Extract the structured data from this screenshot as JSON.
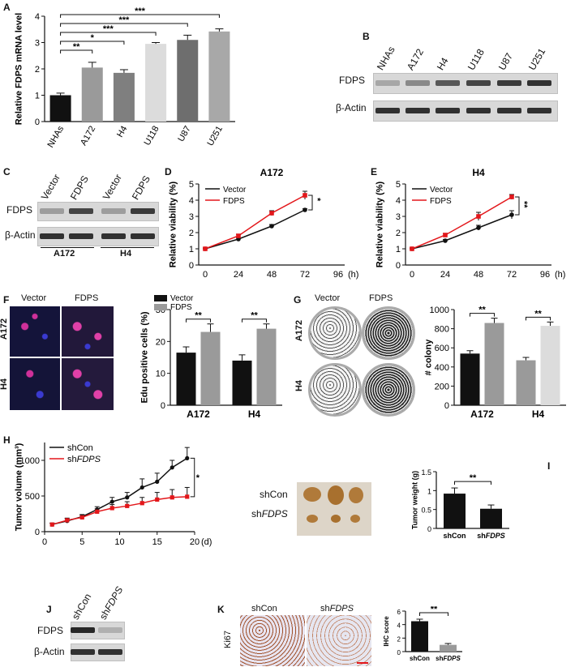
{
  "panels": {
    "A": "A",
    "B": "B",
    "C": "C",
    "D": "D",
    "E": "E",
    "F": "F",
    "G": "G",
    "H": "H",
    "I": "I",
    "J": "J",
    "K": "K"
  },
  "colors": {
    "black": "#111111",
    "red": "#e3171b",
    "grey": "#9a9a9a",
    "lightgrey": "#dcdcdc"
  },
  "blotB": {
    "lanes": [
      "NHAs",
      "A172",
      "H4",
      "U118",
      "U87",
      "U251"
    ],
    "rows": [
      "FDPS",
      "β-Actin"
    ]
  },
  "blotC": {
    "lanes": [
      "Vector",
      "FDPS",
      "Vector",
      "FDPS"
    ],
    "rows": [
      "FDPS",
      "β-Actin"
    ],
    "groups": [
      "A172",
      "H4"
    ]
  },
  "blotJ": {
    "lanes": [
      "shCon",
      "shFDPS"
    ],
    "lane2_prefix": "sh",
    "lane2_italic": "FDPS",
    "rows": [
      "FDPS",
      "β-Actin"
    ]
  },
  "panelF": {
    "col_labels": [
      "Vector",
      "FDPS"
    ],
    "row_labels": [
      "A172",
      "H4"
    ]
  },
  "panelG": {
    "col_labels": [
      "Vector",
      "FDPS"
    ],
    "row_labels": [
      "A172",
      "H4"
    ]
  },
  "panelH_photo": {
    "row1": "shCon",
    "row2_prefix": "sh",
    "row2_italic": "FDPS"
  },
  "panelK": {
    "col1": "shCon",
    "col2_prefix": "sh",
    "col2_italic": "FDPS",
    "row_label": "Ki67"
  },
  "chart_data": [
    {
      "id": "A",
      "type": "bar",
      "categories": [
        "NHAs",
        "A172",
        "H4",
        "U118",
        "U87",
        "U251"
      ],
      "values": [
        1.0,
        2.05,
        1.85,
        2.95,
        3.1,
        3.42
      ],
      "errors": [
        0.08,
        0.2,
        0.12,
        0.05,
        0.18,
        0.1
      ],
      "colors": [
        "#111111",
        "#9a9a9a",
        "#7f7f7f",
        "#dcdcdc",
        "#6e6e6e",
        "#a8a8a8"
      ],
      "ylabel": "Relative FDPS mRNA level",
      "ylim": [
        0,
        4
      ],
      "yticks": [
        0,
        1,
        2,
        3,
        4
      ],
      "significance": [
        {
          "from": 0,
          "to": 1,
          "label": "**"
        },
        {
          "from": 0,
          "to": 2,
          "label": "*"
        },
        {
          "from": 0,
          "to": 3,
          "label": "***"
        },
        {
          "from": 0,
          "to": 4,
          "label": "***"
        },
        {
          "from": 0,
          "to": 5,
          "label": "***"
        }
      ]
    },
    {
      "id": "D",
      "type": "line",
      "title": "A172",
      "x": [
        0,
        24,
        48,
        72
      ],
      "series": [
        {
          "name": "Vector",
          "values": [
            1.0,
            1.6,
            2.4,
            3.4
          ],
          "errors": [
            0.05,
            0.08,
            0.1,
            0.08
          ]
        },
        {
          "name": "FDPS",
          "values": [
            1.0,
            1.8,
            3.2,
            4.3
          ],
          "errors": [
            0.05,
            0.1,
            0.15,
            0.25
          ]
        }
      ],
      "ylabel": "Relative viability (%)",
      "ylim": [
        0,
        5
      ],
      "yticks": [
        0,
        1,
        2,
        3,
        4,
        5
      ],
      "xticks": [
        0,
        24,
        48,
        72,
        96
      ],
      "xunit": "(h)",
      "significance": "*",
      "legend": "top-left"
    },
    {
      "id": "E",
      "type": "line",
      "title": "H4",
      "x": [
        0,
        24,
        48,
        72
      ],
      "series": [
        {
          "name": "Vector",
          "values": [
            1.0,
            1.5,
            2.3,
            3.1
          ],
          "errors": [
            0.05,
            0.08,
            0.15,
            0.25
          ]
        },
        {
          "name": "FDPS",
          "values": [
            1.0,
            1.85,
            3.0,
            4.2
          ],
          "errors": [
            0.05,
            0.1,
            0.25,
            0.15
          ]
        }
      ],
      "ylabel": "Relative viability (%)",
      "ylim": [
        0,
        5
      ],
      "yticks": [
        0,
        1,
        2,
        3,
        4,
        5
      ],
      "xticks": [
        0,
        24,
        48,
        72,
        96
      ],
      "xunit": "(h)",
      "significance": "**",
      "legend": "top-left"
    },
    {
      "id": "F",
      "type": "bar",
      "categories": [
        "A172",
        "H4"
      ],
      "series": [
        {
          "name": "Vector",
          "values": [
            16.5,
            14.0
          ],
          "errors": [
            1.8,
            1.8
          ]
        },
        {
          "name": "FDPS",
          "values": [
            23.0,
            24.0
          ],
          "errors": [
            2.5,
            1.5
          ]
        }
      ],
      "ylabel": "Edu positive cells (%)",
      "ylim": [
        0,
        30
      ],
      "yticks": [
        0,
        10,
        20,
        30
      ],
      "significance": [
        "**",
        "**"
      ],
      "legend": "top-left"
    },
    {
      "id": "G",
      "type": "bar",
      "categories": [
        "A172",
        "H4"
      ],
      "series": [
        {
          "values": [
            540,
            470
          ],
          "errors": [
            30,
            30
          ]
        },
        {
          "values": [
            860,
            830
          ],
          "errors": [
            50,
            40
          ]
        }
      ],
      "ylabel": "# colony",
      "ylim": [
        0,
        1000
      ],
      "yticks": [
        0,
        200,
        400,
        600,
        800,
        1000
      ],
      "significance": [
        "**",
        "**"
      ]
    },
    {
      "id": "H",
      "type": "line",
      "x": [
        1,
        3,
        5,
        7,
        9,
        11,
        13,
        15,
        17,
        19
      ],
      "series": [
        {
          "name": "shCon",
          "values": [
            100,
            150,
            210,
            310,
            420,
            480,
            620,
            700,
            900,
            1030
          ],
          "errors": [
            20,
            30,
            30,
            40,
            60,
            70,
            120,
            120,
            100,
            150
          ]
        },
        {
          "name": "shFDPS",
          "values": [
            100,
            160,
            200,
            280,
            330,
            360,
            400,
            450,
            480,
            490
          ],
          "errors": [
            20,
            30,
            30,
            40,
            50,
            60,
            80,
            100,
            110,
            130
          ]
        }
      ],
      "ylabel": "Tumor volume (mm³)",
      "ylim": [
        0,
        1250
      ],
      "yticks": [
        0,
        500,
        1000
      ],
      "xticks": [
        0,
        5,
        10,
        15,
        20
      ],
      "xunit": "(d)",
      "significance": "*",
      "legend": "top-left"
    },
    {
      "id": "I",
      "type": "bar",
      "categories": [
        "shCon",
        "shFDPS"
      ],
      "values": [
        0.92,
        0.52
      ],
      "errors": [
        0.15,
        0.1
      ],
      "colors": [
        "#111111",
        "#111111"
      ],
      "ylabel": "Tumor weight (g)",
      "ylim": [
        0,
        1.5
      ],
      "yticks": [
        0,
        0.5,
        1.0,
        1.5
      ],
      "significance": "**"
    },
    {
      "id": "K",
      "type": "bar",
      "categories": [
        "shCon",
        "shFDPS"
      ],
      "values": [
        4.5,
        1.0
      ],
      "errors": [
        0.3,
        0.2
      ],
      "colors": [
        "#111111",
        "#9a9a9a"
      ],
      "ylabel": "IHC score",
      "ylim": [
        0,
        6
      ],
      "yticks": [
        0,
        2,
        4,
        6
      ],
      "significance": "**"
    }
  ]
}
